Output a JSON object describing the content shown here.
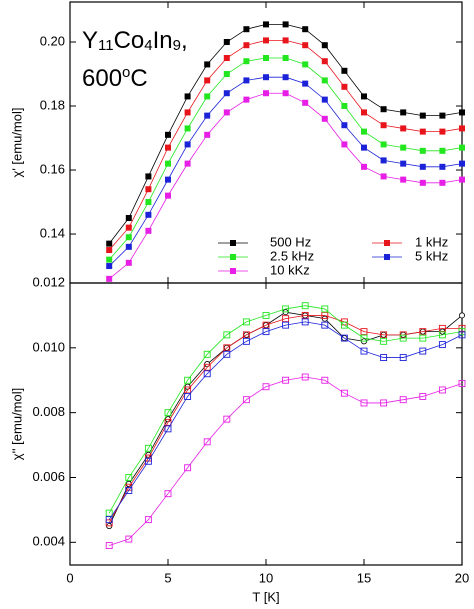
{
  "chart_data": [
    {
      "type": "line",
      "ylabel": "χ' [emu/mol]",
      "annotation": [
        [
          "Y",
          "11",
          "Co",
          "4",
          "In",
          "9",
          ","
        ],
        [
          "600",
          "o",
          "C"
        ]
      ],
      "x": [
        2,
        3,
        4,
        5,
        6,
        7,
        8,
        9,
        10,
        11,
        12,
        13,
        14,
        15,
        16,
        17,
        18,
        19,
        20
      ],
      "xlim": [
        0,
        20
      ],
      "xticks": [
        0,
        5,
        10,
        15,
        20
      ],
      "ylim": [
        0.1247,
        0.2125
      ],
      "yticks": [
        0.14,
        0.16,
        0.18,
        {
          "value": 0.2,
          "label": "0.20"
        }
      ],
      "legend": "lower right",
      "marker": "filled-square",
      "series": [
        {
          "name": "500 Hz",
          "color": "#000000",
          "values": [
            0.137,
            0.145,
            0.158,
            0.171,
            0.183,
            0.193,
            0.2,
            0.204,
            0.2055,
            0.2055,
            0.204,
            0.199,
            0.191,
            0.183,
            0.179,
            0.178,
            0.177,
            0.177,
            0.178
          ]
        },
        {
          "name": "1 kHz",
          "color": "#e8141c",
          "values": [
            0.135,
            0.142,
            0.154,
            0.167,
            0.178,
            0.188,
            0.195,
            0.199,
            0.2005,
            0.2005,
            0.199,
            0.194,
            0.186,
            0.178,
            0.174,
            0.173,
            0.172,
            0.172,
            0.173
          ]
        },
        {
          "name": "2.5 kHz",
          "color": "#22e61e",
          "values": [
            0.132,
            0.139,
            0.15,
            0.162,
            0.173,
            0.183,
            0.19,
            0.194,
            0.195,
            0.195,
            0.193,
            0.188,
            0.18,
            0.172,
            0.168,
            0.167,
            0.166,
            0.166,
            0.167
          ]
        },
        {
          "name": "5 kHz",
          "color": "#1c22d8",
          "values": [
            0.13,
            0.136,
            0.146,
            0.157,
            0.168,
            0.177,
            0.184,
            0.188,
            0.189,
            0.189,
            0.187,
            0.182,
            0.174,
            0.167,
            0.163,
            0.162,
            0.161,
            0.161,
            0.162
          ]
        },
        {
          "name": "10 kKz",
          "color": "#e61ee6",
          "values": [
            0.126,
            0.131,
            0.141,
            0.152,
            0.162,
            0.171,
            0.178,
            0.182,
            0.184,
            0.184,
            0.181,
            0.176,
            0.168,
            0.161,
            0.158,
            0.157,
            0.156,
            0.156,
            0.157
          ]
        }
      ]
    },
    {
      "type": "line",
      "ylabel": "χ'' [emu/mol]",
      "xlabel": "T [K]",
      "x": [
        2,
        3,
        4,
        5,
        6,
        7,
        8,
        9,
        10,
        11,
        12,
        13,
        14,
        15,
        16,
        17,
        18,
        19,
        20
      ],
      "xlim": [
        0,
        20
      ],
      "xticks": [
        0,
        5,
        10,
        15,
        20
      ],
      "ylim": [
        0.0033,
        0.012
      ],
      "yticks": [
        0.004,
        0.006,
        0.008,
        {
          "value": 0.01,
          "label": "0.010"
        },
        0.012
      ],
      "marker": "open-square",
      "series": [
        {
          "color": "#000000",
          "marker": "open-circle",
          "values": [
            0.0045,
            0.0058,
            0.0067,
            0.0078,
            0.0088,
            0.0095,
            0.01,
            0.0104,
            0.0107,
            0.0111,
            0.011,
            0.0109,
            0.0103,
            0.0102,
            0.0104,
            0.0104,
            0.0105,
            0.0105,
            0.011
          ]
        },
        {
          "color": "#e8141c",
          "values": [
            0.0046,
            0.0057,
            0.0066,
            0.0077,
            0.0087,
            0.0094,
            0.01,
            0.0104,
            0.0107,
            0.0109,
            0.011,
            0.011,
            0.0108,
            0.0105,
            0.0104,
            0.0104,
            0.0105,
            0.0106,
            0.0106
          ]
        },
        {
          "color": "#22e61e",
          "values": [
            0.0049,
            0.006,
            0.0069,
            0.008,
            0.009,
            0.0098,
            0.0104,
            0.0108,
            0.011,
            0.0112,
            0.0113,
            0.0112,
            0.0107,
            0.0103,
            0.0102,
            0.0103,
            0.0103,
            0.0104,
            0.0105
          ]
        },
        {
          "color": "#1c22d8",
          "values": [
            0.0047,
            0.0056,
            0.0065,
            0.0075,
            0.0085,
            0.0092,
            0.0098,
            0.0102,
            0.0105,
            0.0107,
            0.0108,
            0.0107,
            0.0103,
            0.0099,
            0.0097,
            0.0097,
            0.0099,
            0.0101,
            0.0104
          ]
        },
        {
          "color": "#e61ee6",
          "values": [
            0.0039,
            0.0041,
            0.0047,
            0.0055,
            0.0063,
            0.0071,
            0.0078,
            0.0084,
            0.0088,
            0.009,
            0.0091,
            0.009,
            0.0086,
            0.0083,
            0.0083,
            0.0084,
            0.0085,
            0.0087,
            0.0089
          ]
        }
      ]
    }
  ]
}
